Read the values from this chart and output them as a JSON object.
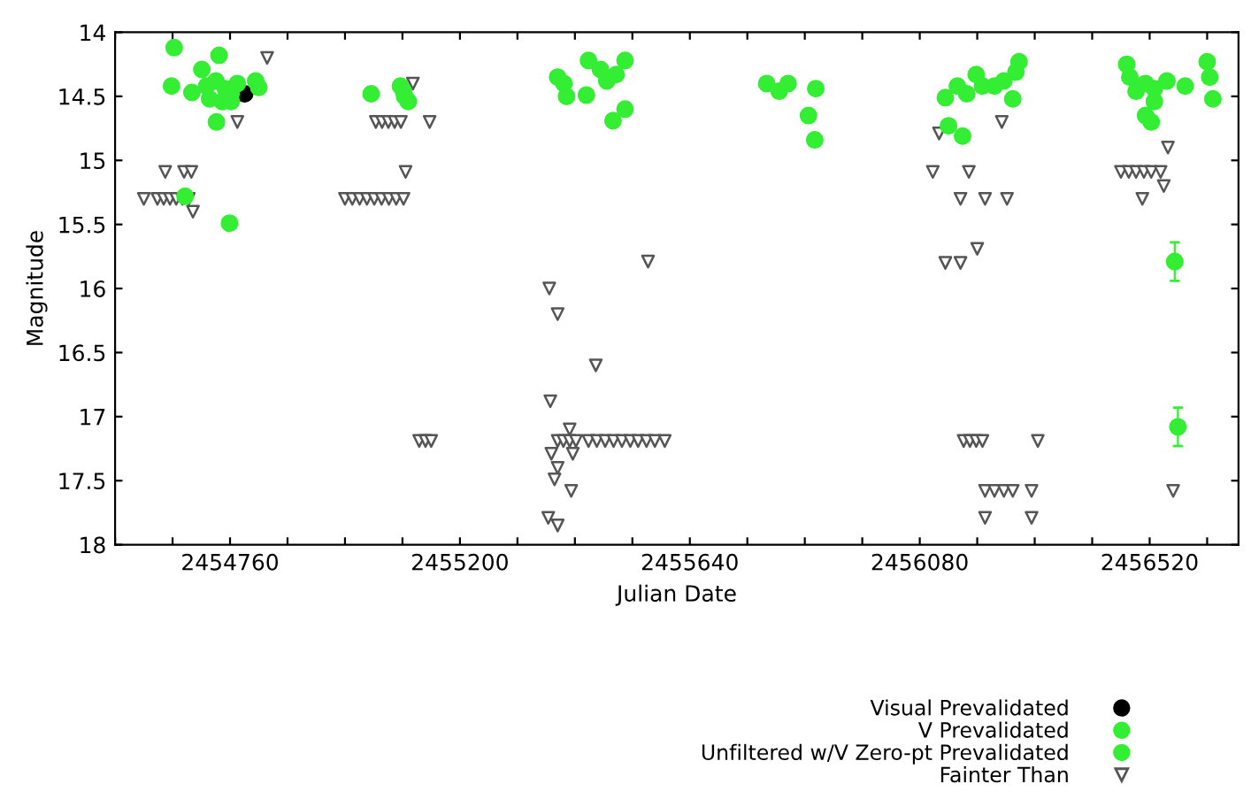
{
  "chart_data": {
    "type": "scatter",
    "xlabel": "Julian Date",
    "ylabel": "Magnitude",
    "xlim": [
      2454540,
      2456690
    ],
    "ylim": [
      18,
      14
    ],
    "xticks": [
      {
        "value": 2454540,
        "label": null
      },
      {
        "value": 2454650,
        "label": null
      },
      2454760,
      {
        "value": 2454870,
        "label": null
      },
      {
        "value": 2454980,
        "label": null
      },
      {
        "value": 2455090,
        "label": null
      },
      2455200,
      {
        "value": 2455310,
        "label": null
      },
      {
        "value": 2455420,
        "label": null
      },
      {
        "value": 2455530,
        "label": null
      },
      2455640,
      {
        "value": 2455750,
        "label": null
      },
      {
        "value": 2455860,
        "label": null
      },
      {
        "value": 2455970,
        "label": null
      },
      2456080,
      {
        "value": 2456190,
        "label": null
      },
      {
        "value": 2456300,
        "label": null
      },
      {
        "value": 2456410,
        "label": null
      },
      2456520,
      {
        "value": 2456630,
        "label": null
      }
    ],
    "yticks": [
      14,
      14.5,
      15,
      15.5,
      16,
      16.5,
      17,
      17.5,
      18
    ],
    "grid": false,
    "legend": "bottom right",
    "series": [
      {
        "name": "Visual Prevalidated",
        "color": "#000000",
        "marker": "circle",
        "x": [
          2454788
        ],
        "values": [
          14.48
        ]
      },
      {
        "name": "V Prevalidated",
        "color": "#33ee33",
        "marker": "circle",
        "x": [
          2454653,
          2454648,
          2454706,
          2454739,
          2454687,
          2454715,
          2454733,
          2454751,
          2454762,
          2454721,
          2454745,
          2454774,
          2454762,
          2454809,
          2454815,
          2454734,
          2454759,
          2454674,
          2455030,
          2455086,
          2455094,
          2455101,
          2455092,
          2455387,
          2455399,
          2455404,
          2455442,
          2455446,
          2455469,
          2455481,
          2455499,
          2455516,
          2455493,
          2455516,
          2455787,
          2455811,
          2455828,
          2455881,
          2455867,
          2455879,
          2456129,
          2456152,
          2456170,
          2456188,
          2456200,
          2456223,
          2456241,
          2456258,
          2456270,
          2456264,
          2456135,
          2456162,
          2456476,
          2456482,
          2456494,
          2456512,
          2456529,
          2456553,
          2456529,
          2456512,
          2456523,
          2456588,
          2456630,
          2456635,
          2456641
        ],
        "values": [
          14.12,
          14.42,
          14.29,
          14.18,
          14.47,
          14.42,
          14.38,
          14.44,
          14.48,
          14.52,
          14.54,
          14.4,
          14.54,
          14.38,
          14.43,
          14.7,
          15.49,
          15.28,
          14.48,
          14.42,
          14.5,
          14.54,
          14.46,
          14.35,
          14.4,
          14.5,
          14.49,
          14.22,
          14.29,
          14.38,
          14.33,
          14.22,
          14.69,
          14.6,
          14.4,
          14.46,
          14.4,
          14.44,
          14.65,
          14.84,
          14.51,
          14.42,
          14.48,
          14.33,
          14.42,
          14.42,
          14.38,
          14.52,
          14.23,
          14.31,
          14.73,
          14.81,
          14.25,
          14.35,
          14.46,
          14.4,
          14.44,
          14.38,
          14.54,
          14.65,
          14.7,
          14.42,
          14.23,
          14.35,
          14.52
        ]
      },
      {
        "name": "Unfiltered w/V Zero-pt Prevalidated",
        "color": "#33ee33",
        "marker": "circle",
        "x": [
          2456568,
          2456574
        ],
        "values": [
          15.79,
          17.08
        ],
        "errors": [
          0.15,
          0.15
        ]
      },
      {
        "name": "Fainter Than",
        "color": "#555555",
        "marker": "triangle",
        "x": [
          2454831,
          2454774,
          2454636,
          2454672,
          2454686,
          2454595,
          2454621,
          2454633,
          2454645,
          2454657,
          2454669,
          2454681,
          2454689,
          2455039,
          2455051,
          2455063,
          2455075,
          2455087,
          2455142,
          2455096,
          2454980,
          2454994,
          2455008,
          2455022,
          2455036,
          2455050,
          2455064,
          2455078,
          2455092,
          2455110,
          2455122,
          2455134,
          2455145,
          2455560,
          2455371,
          2455387,
          2455460,
          2455373,
          2455410,
          2455387,
          2455398,
          2455410,
          2455422,
          2455446,
          2455462,
          2455478,
          2455494,
          2455510,
          2455526,
          2455541,
          2455557,
          2455573,
          2455592,
          2455375,
          2455416,
          2455387,
          2455381,
          2455413,
          2455369,
          2455387,
          2456237,
          2456117,
          2456105,
          2456174,
          2456158,
          2456205,
          2456247,
          2456129,
          2456158,
          2456190,
          2456164,
          2456176,
          2456188,
          2456200,
          2456306,
          2456205,
          2456223,
          2456241,
          2456258,
          2456294,
          2456205,
          2456294,
          2456555,
          2456465,
          2456480,
          2456494,
          2456509,
          2456523,
          2456541,
          2456547,
          2456506,
          2456565
        ],
        "values": [
          14.2,
          14.7,
          15.09,
          15.09,
          15.09,
          15.3,
          15.3,
          15.3,
          15.3,
          15.3,
          15.3,
          15.3,
          15.4,
          14.7,
          14.7,
          14.7,
          14.7,
          14.7,
          14.7,
          15.09,
          15.3,
          15.3,
          15.3,
          15.3,
          15.3,
          15.3,
          15.3,
          15.3,
          15.3,
          14.4,
          17.19,
          17.19,
          17.19,
          15.79,
          16.0,
          16.2,
          16.6,
          16.88,
          17.1,
          17.19,
          17.19,
          17.19,
          17.19,
          17.19,
          17.19,
          17.19,
          17.19,
          17.19,
          17.19,
          17.19,
          17.19,
          17.19,
          17.19,
          17.29,
          17.29,
          17.4,
          17.49,
          17.58,
          17.79,
          17.85,
          14.7,
          14.79,
          15.09,
          15.09,
          15.3,
          15.3,
          15.3,
          15.8,
          15.8,
          15.69,
          17.19,
          17.19,
          17.19,
          17.19,
          17.19,
          17.58,
          17.58,
          17.58,
          17.58,
          17.58,
          17.79,
          17.79,
          14.9,
          15.09,
          15.09,
          15.09,
          15.09,
          15.09,
          15.09,
          15.2,
          15.3,
          17.58
        ]
      }
    ]
  }
}
